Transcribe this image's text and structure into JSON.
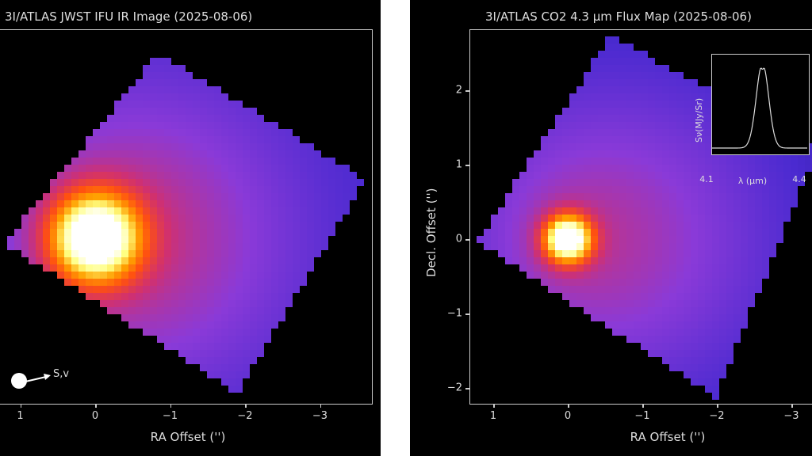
{
  "chart_data": [
    {
      "type": "heatmap",
      "title": "3I/ATLAS JWST IFU IR Image (2025-08-06)",
      "xlabel": "RA Offset ('')",
      "ylabel": "",
      "xticks": [
        "1",
        "0",
        "−1",
        "−2",
        "−3"
      ],
      "xtick_values": [
        1,
        0,
        -1,
        -2,
        -3
      ],
      "xlim": [
        1.25,
        -3.7
      ],
      "peak": {
        "x": 0,
        "y": 0
      },
      "annotation": "S,v",
      "colormap": [
        "#000010",
        "#1a1070",
        "#4a2ad0",
        "#8a3ad8",
        "#d03070",
        "#ff5010",
        "#ffa000",
        "#ffff80",
        "#ffffff"
      ]
    },
    {
      "type": "heatmap",
      "title": "3I/ATLAS CO2 4.3 µm Flux Map (2025-08-06)",
      "xlabel": "RA Offset ('')",
      "ylabel": "Decl. Offset ('')",
      "xticks": [
        "1",
        "0",
        "−1",
        "−2",
        "−3"
      ],
      "xtick_values": [
        1,
        0,
        -1,
        -2,
        -3
      ],
      "yticks": [
        "2",
        "1",
        "0",
        "−1",
        "−2"
      ],
      "ytick_values": [
        2,
        1,
        0,
        -1,
        -2
      ],
      "peak": {
        "x": 0,
        "y": 0
      },
      "inset": {
        "type": "line",
        "xlabel": "λ (µm)",
        "ylabel": "Sν(MJy/Sr)",
        "xticks": [
          "4.1",
          "4.4"
        ],
        "xlim": [
          4.08,
          4.42
        ],
        "peak_wavelength": 4.26
      }
    }
  ]
}
